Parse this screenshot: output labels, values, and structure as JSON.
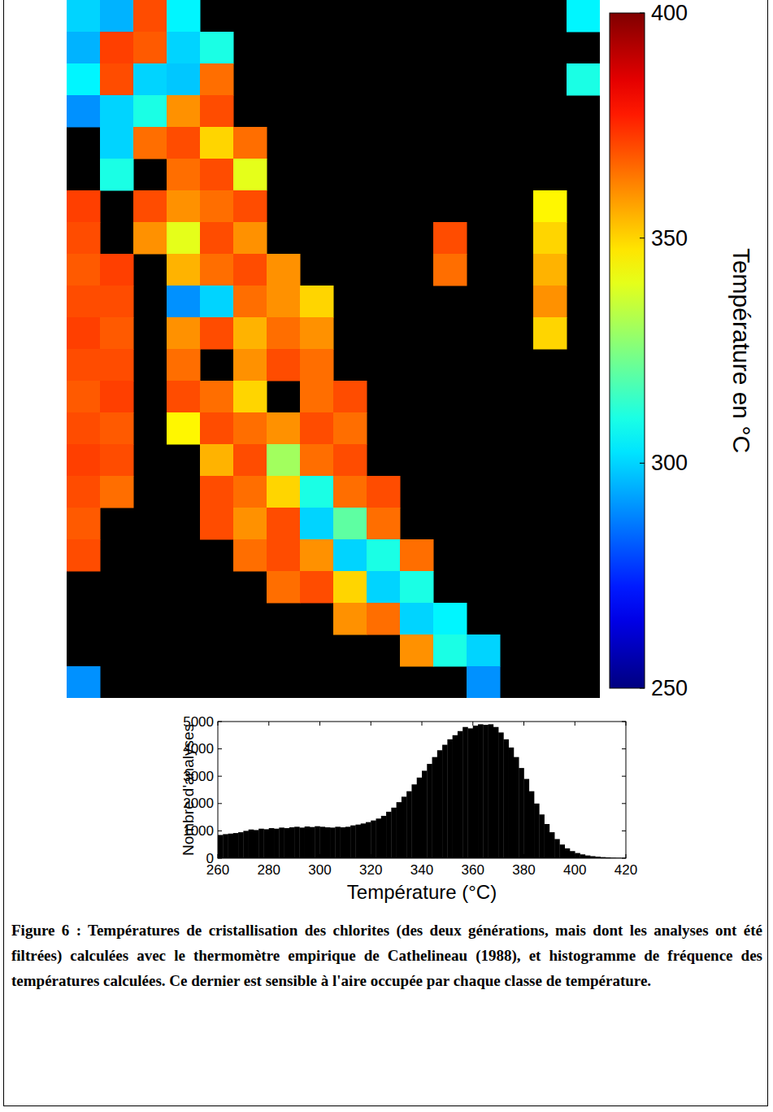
{
  "chart_data": [
    {
      "type": "heatmap",
      "tick_labels": false,
      "colorbar_label": "Température en °C",
      "colorbar_range": [
        250,
        400
      ],
      "colorbar_ticks": [
        250,
        300,
        350,
        400
      ],
      "cells": [
        [
          300,
          295,
          370,
          305,
          null,
          null,
          null,
          null,
          null,
          null,
          null,
          null,
          null,
          null,
          null,
          305
        ],
        [
          295,
          372,
          368,
          300,
          310,
          null,
          null,
          null,
          null,
          null,
          null,
          null,
          null,
          null,
          null,
          null
        ],
        [
          305,
          370,
          300,
          298,
          365,
          null,
          null,
          null,
          null,
          null,
          null,
          null,
          null,
          null,
          null,
          310
        ],
        [
          290,
          300,
          310,
          360,
          370,
          null,
          null,
          null,
          null,
          null,
          null,
          null,
          null,
          null,
          null,
          null
        ],
        [
          null,
          300,
          365,
          370,
          350,
          365,
          null,
          null,
          null,
          null,
          null,
          null,
          null,
          null,
          null,
          null
        ],
        [
          null,
          310,
          null,
          365,
          370,
          340,
          null,
          null,
          null,
          null,
          null,
          null,
          null,
          null,
          null,
          null
        ],
        [
          372,
          null,
          370,
          360,
          365,
          370,
          null,
          null,
          null,
          null,
          null,
          null,
          null,
          null,
          345,
          null
        ],
        [
          370,
          null,
          360,
          340,
          370,
          360,
          null,
          null,
          null,
          null,
          null,
          370,
          null,
          null,
          350,
          null
        ],
        [
          368,
          372,
          null,
          355,
          365,
          370,
          360,
          null,
          null,
          null,
          null,
          365,
          null,
          null,
          355,
          null
        ],
        [
          370,
          370,
          null,
          290,
          300,
          365,
          360,
          350,
          null,
          null,
          null,
          null,
          null,
          null,
          360,
          null
        ],
        [
          372,
          368,
          null,
          360,
          370,
          355,
          365,
          360,
          null,
          null,
          null,
          null,
          null,
          null,
          350,
          null
        ],
        [
          370,
          370,
          null,
          365,
          null,
          360,
          370,
          365,
          null,
          null,
          null,
          null,
          null,
          null,
          null,
          null
        ],
        [
          368,
          372,
          null,
          370,
          365,
          350,
          null,
          365,
          370,
          null,
          null,
          null,
          null,
          null,
          null,
          null
        ],
        [
          370,
          368,
          null,
          345,
          370,
          365,
          360,
          370,
          365,
          null,
          null,
          null,
          null,
          null,
          null,
          null
        ],
        [
          372,
          370,
          null,
          null,
          355,
          370,
          330,
          365,
          370,
          null,
          null,
          null,
          null,
          null,
          null,
          null
        ],
        [
          370,
          365,
          null,
          null,
          370,
          365,
          350,
          310,
          365,
          370,
          null,
          null,
          null,
          null,
          null,
          null
        ],
        [
          368,
          null,
          null,
          null,
          370,
          360,
          370,
          300,
          320,
          365,
          null,
          null,
          null,
          null,
          null,
          null
        ],
        [
          370,
          null,
          null,
          null,
          null,
          365,
          370,
          360,
          300,
          310,
          365,
          null,
          null,
          null,
          null,
          null
        ],
        [
          null,
          null,
          null,
          null,
          null,
          null,
          365,
          370,
          350,
          300,
          310,
          null,
          null,
          null,
          null,
          null
        ],
        [
          null,
          null,
          null,
          null,
          null,
          null,
          null,
          null,
          360,
          365,
          300,
          305,
          null,
          null,
          null,
          null
        ],
        [
          null,
          null,
          null,
          null,
          null,
          null,
          null,
          null,
          null,
          null,
          360,
          310,
          300,
          null,
          null,
          null
        ],
        [
          290,
          null,
          null,
          null,
          null,
          null,
          null,
          null,
          null,
          null,
          null,
          null,
          290,
          null,
          null,
          null
        ]
      ]
    },
    {
      "type": "histogram",
      "x_label": "Température (°C)",
      "y_label": "Nombre d'analyses",
      "color": "#000000",
      "xlim": [
        260,
        420
      ],
      "ylim": [
        0,
        5000
      ],
      "xticks": [
        260,
        280,
        300,
        320,
        340,
        360,
        380,
        400,
        420
      ],
      "yticks": [
        0,
        1000,
        2000,
        3000,
        4000,
        5000
      ],
      "bins": [
        260,
        262,
        264,
        266,
        268,
        270,
        272,
        274,
        276,
        278,
        280,
        282,
        284,
        286,
        288,
        290,
        292,
        294,
        296,
        298,
        300,
        302,
        304,
        306,
        308,
        310,
        312,
        314,
        316,
        318,
        320,
        322,
        324,
        326,
        328,
        330,
        332,
        334,
        336,
        338,
        340,
        342,
        344,
        346,
        348,
        350,
        352,
        354,
        356,
        358,
        360,
        362,
        364,
        366,
        368,
        370,
        372,
        374,
        376,
        378,
        380,
        382,
        384,
        386,
        388,
        390,
        392,
        394,
        396,
        398,
        400,
        402,
        404,
        406,
        408,
        410,
        412,
        414,
        416,
        418,
        420
      ],
      "counts": [
        850,
        880,
        900,
        920,
        950,
        1000,
        1050,
        1030,
        1080,
        1060,
        1100,
        1080,
        1120,
        1100,
        1130,
        1150,
        1120,
        1160,
        1140,
        1170,
        1150,
        1130,
        1120,
        1150,
        1130,
        1150,
        1200,
        1230,
        1270,
        1320,
        1380,
        1450,
        1550,
        1700,
        1850,
        2050,
        2250,
        2450,
        2700,
        2950,
        3200,
        3450,
        3700,
        3950,
        4150,
        4350,
        4500,
        4650,
        4800,
        4750,
        4850,
        4900,
        4880,
        4900,
        4800,
        4600,
        4350,
        4050,
        3700,
        3300,
        2900,
        2450,
        2000,
        1600,
        1250,
        950,
        700,
        500,
        360,
        260,
        190,
        140,
        100,
        75,
        55,
        40,
        30,
        20,
        15,
        10
      ]
    }
  ],
  "caption": "Figure 6 : Températures de cristallisation des chlorites (des deux générations, mais dont les analyses ont été filtrées) calculées avec le thermomètre empirique de Cathelineau (1988), et histogramme de fréquence des températures calculées. Ce dernier est sensible à l'aire occupée par chaque classe de température."
}
